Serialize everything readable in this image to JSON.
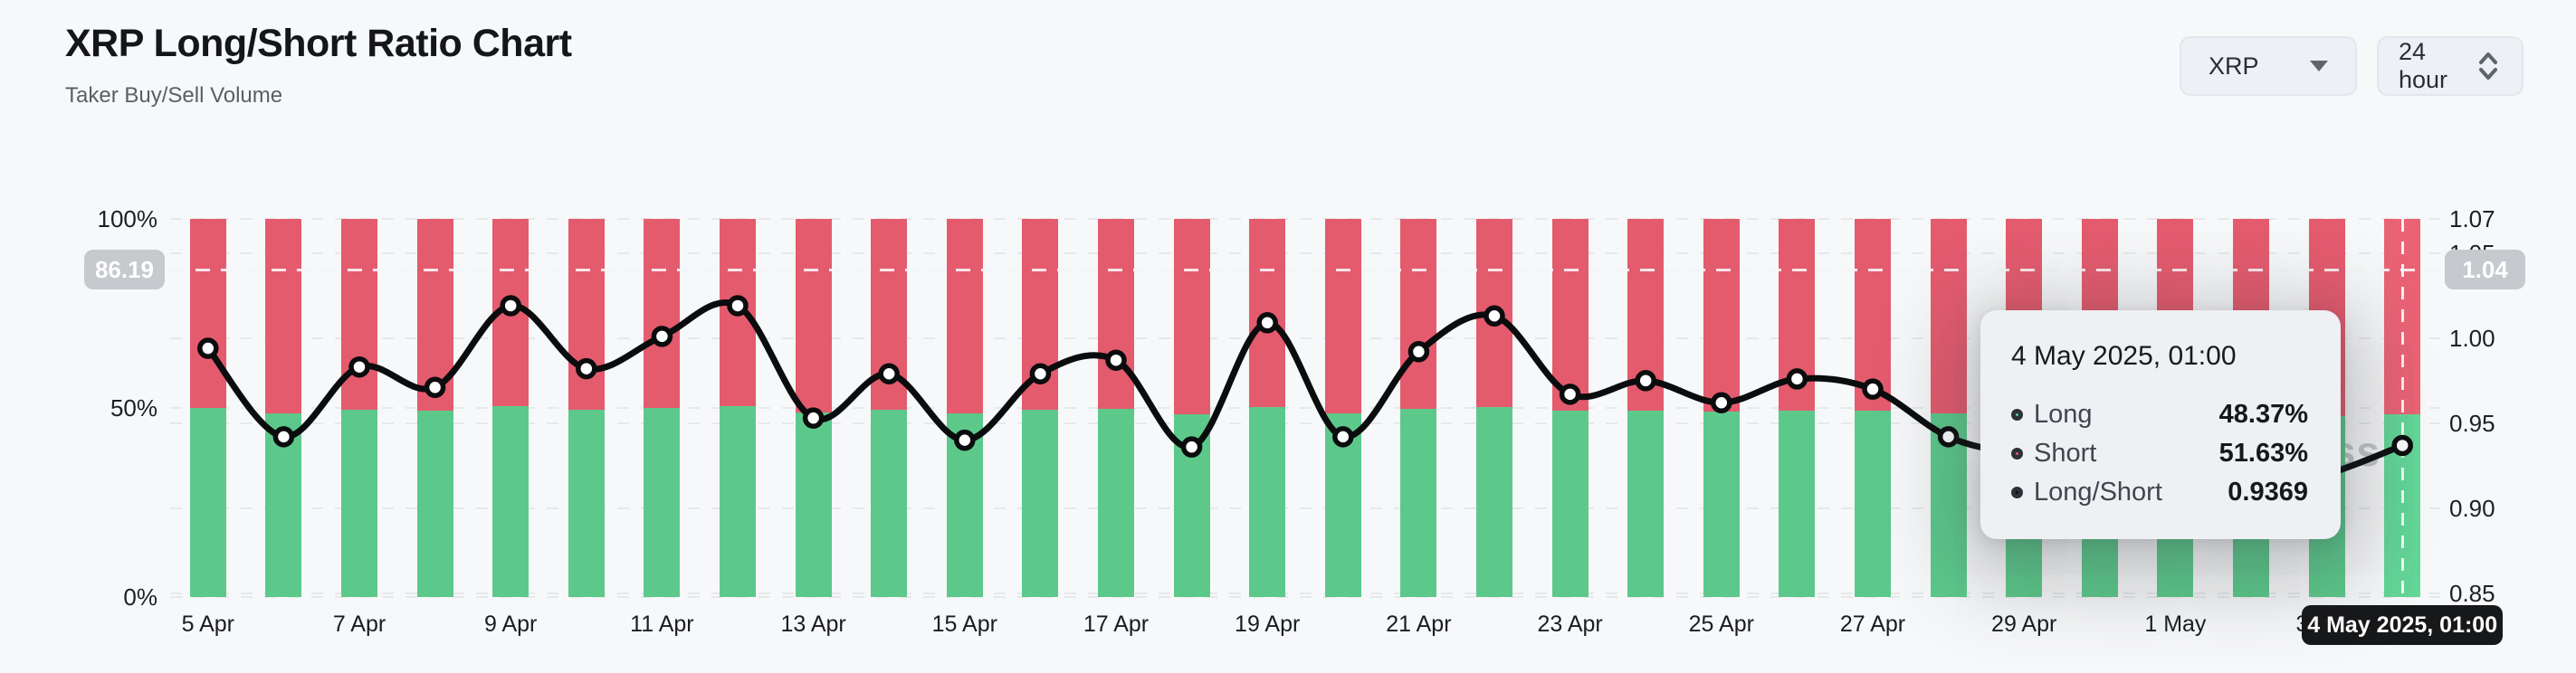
{
  "header": {
    "title": "XRP Long/Short Ratio Chart",
    "subtitle": "Taker Buy/Sell Volume"
  },
  "controls": {
    "symbol_select": {
      "value": "XRP",
      "icon": "caret-down-icon"
    },
    "interval_select": {
      "value": "24 hour",
      "icon": "up-down-selector-icon"
    }
  },
  "watermark_text": "coinglass",
  "colors": {
    "long": "#5cc98b",
    "short": "#e45b6e",
    "long_highlighted": "#63d697",
    "short_highlighted": "#ea6375",
    "line": "#0b0c0d",
    "dot_fill": "#ffffff",
    "gray_badge": "#c6c9cd",
    "black_badge": "#17181a",
    "background": "#f7f8f9",
    "tooltip_background": "#eef0f3"
  },
  "left_axis": {
    "ticks": [
      {
        "label": "100%",
        "value": 100
      },
      {
        "label": "50%",
        "value": 50
      },
      {
        "label": "0%",
        "value": 0
      }
    ],
    "crosshair_label": "86.19"
  },
  "right_axis": {
    "ticks": [
      {
        "label": "1.07",
        "value": 1.07
      },
      {
        "label": "1.05",
        "value": 1.05
      },
      {
        "label": "1.00",
        "value": 1.0
      },
      {
        "label": "0.95",
        "value": 0.95
      },
      {
        "label": "0.90",
        "value": 0.9
      },
      {
        "label": "0.85",
        "value": 0.85
      }
    ],
    "crosshair_label": "1.04"
  },
  "x_axis": {
    "visible_labels": [
      "5 Apr",
      "7 Apr",
      "9 Apr",
      "11 Apr",
      "13 Apr",
      "15 Apr",
      "17 Apr",
      "19 Apr",
      "21 Apr",
      "23 Apr",
      "25 Apr",
      "27 Apr",
      "29 Apr",
      "1 May",
      "3 May"
    ],
    "label_every_n_days": 2,
    "crosshair_label": "4 May 2025, 01:00"
  },
  "tooltip": {
    "title": "4 May 2025, 01:00",
    "rows": [
      {
        "label": "Long",
        "value": "48.37%",
        "marker_color": "#5cc98b"
      },
      {
        "label": "Short",
        "value": "51.63%",
        "marker_color": "#e45b6e"
      },
      {
        "label": "Long/Short",
        "value": "0.9369",
        "marker_color": "#0b0c0d"
      }
    ]
  },
  "chart_data": {
    "type": "bar",
    "subtype": "100%-stacked bars with overlaid line (long/short ratio)",
    "categories": [
      "5 Apr",
      "6 Apr",
      "7 Apr",
      "8 Apr",
      "9 Apr",
      "10 Apr",
      "11 Apr",
      "12 Apr",
      "13 Apr",
      "14 Apr",
      "15 Apr",
      "16 Apr",
      "17 Apr",
      "18 Apr",
      "19 Apr",
      "20 Apr",
      "21 Apr",
      "22 Apr",
      "23 Apr",
      "24 Apr",
      "25 Apr",
      "26 Apr",
      "27 Apr",
      "28 Apr",
      "29 Apr",
      "30 Apr",
      "1 May",
      "2 May",
      "3 May",
      "4 May"
    ],
    "series": [
      {
        "name": "Long",
        "axis": "left",
        "unit": "%",
        "color": "#5cc98b",
        "values": [
          49.9,
          48.5,
          49.6,
          49.3,
          50.5,
          49.6,
          50.0,
          50.5,
          48.8,
          49.5,
          48.5,
          49.5,
          49.7,
          48.4,
          50.2,
          48.5,
          49.8,
          50.3,
          49.2,
          49.4,
          49.0,
          49.4,
          49.2,
          48.5,
          48.2,
          47.8,
          48.1,
          47.7,
          47.9,
          48.37
        ]
      },
      {
        "name": "Short",
        "axis": "left",
        "unit": "%",
        "color": "#e45b6e",
        "values": [
          50.1,
          51.5,
          50.4,
          50.7,
          49.5,
          50.4,
          50.0,
          49.5,
          51.2,
          50.5,
          51.5,
          50.5,
          50.3,
          51.6,
          49.8,
          51.5,
          50.2,
          49.7,
          50.8,
          50.6,
          51.0,
          50.6,
          50.8,
          51.5,
          51.8,
          52.2,
          51.9,
          52.3,
          52.1,
          51.63
        ]
      },
      {
        "name": "Long/Short",
        "axis": "right",
        "color": "#0b0c0d",
        "values": [
          0.994,
          0.942,
          0.983,
          0.971,
          1.019,
          0.982,
          1.001,
          1.019,
          0.953,
          0.979,
          0.94,
          0.979,
          0.987,
          0.936,
          1.009,
          0.942,
          0.992,
          1.013,
          0.967,
          0.975,
          0.962,
          0.976,
          0.97,
          0.942,
          0.93,
          0.915,
          0.925,
          0.912,
          0.92,
          0.9369
        ]
      }
    ],
    "left_axis_range": [
      0,
      100
    ],
    "right_axis_range": [
      0.85,
      1.07
    ],
    "highlighted_index": 29,
    "crosshair": {
      "x_category": "4 May",
      "left_value": 86.19,
      "right_value": 1.04
    },
    "legend_position": "tooltip-only",
    "grid": "dashed horizontal lines at both axes' ticks",
    "note": "Points for 29 Apr - 3 May are occluded by the tooltip; their values are visual estimates."
  }
}
